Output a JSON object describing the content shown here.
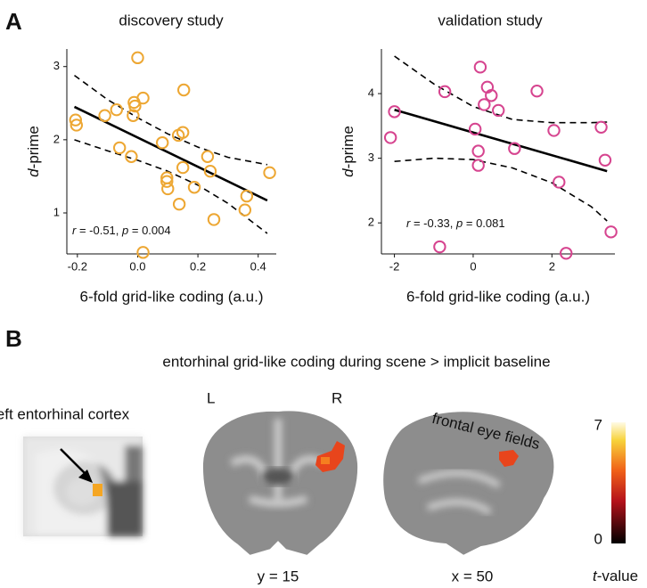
{
  "panel_a": "A",
  "panel_b": "B",
  "chart_data": [
    {
      "type": "scatter",
      "title": "discovery study",
      "x_label": "6-fold grid-like coding (a.u.)",
      "y_label": [
        "d",
        "-prime"
      ],
      "color": "#eda733",
      "xlim": [
        -0.235,
        0.46
      ],
      "ylim": [
        0.44,
        3.24
      ],
      "xticks": [
        -0.2,
        {
          "value": 0,
          "label": "0.0"
        },
        0.2,
        0.4
      ],
      "yticks": [
        1,
        2,
        3
      ],
      "x": [
        -0.206,
        -0.203,
        -0.109,
        -0.07,
        0.0,
        -0.012,
        -0.009,
        -0.015,
        0.018,
        -0.06,
        -0.021,
        0.153,
        0.082,
        0.135,
        0.15,
        0.15,
        0.097,
        0.097,
        0.1,
        0.188,
        0.138,
        0.232,
        0.241,
        0.253,
        0.356,
        0.362,
        0.438,
        0.018
      ],
      "values": [
        2.27,
        2.2,
        2.33,
        2.41,
        3.12,
        2.51,
        2.46,
        2.33,
        2.57,
        1.89,
        1.77,
        2.68,
        1.96,
        2.06,
        2.1,
        1.62,
        1.48,
        1.43,
        1.33,
        1.35,
        1.12,
        1.77,
        1.57,
        0.91,
        1.04,
        1.23,
        1.55,
        0.46
      ],
      "fit": {
        "x": [
          -0.21,
          0.43
        ],
        "y": [
          2.45,
          1.17
        ]
      },
      "ci": {
        "x": [
          -0.21,
          -0.1,
          0,
          0.1,
          0.2,
          0.3,
          0.43
        ],
        "upper": [
          2.88,
          2.55,
          2.3,
          2.08,
          1.9,
          1.76,
          1.66
        ],
        "lower": [
          2.0,
          1.85,
          1.72,
          1.57,
          1.38,
          1.13,
          0.72
        ]
      },
      "annotation": [
        "r",
        " = -0.51, ",
        "p",
        " = 0.004"
      ]
    },
    {
      "type": "scatter",
      "title": "validation study",
      "x_label": "6-fold grid-like coding (a.u.)",
      "y_label": [
        "d",
        "-prime"
      ],
      "color": "#d6448f",
      "xlim": [
        -2.33,
        3.6
      ],
      "ylim": [
        1.52,
        4.69
      ],
      "xticks": [
        -2,
        0,
        2
      ],
      "yticks": [
        2,
        3,
        4
      ],
      "x": [
        -2.1,
        -2.0,
        -0.72,
        0.18,
        0.36,
        0.46,
        0.28,
        0.64,
        1.62,
        0.05,
        0.13,
        0.13,
        1.05,
        2.05,
        3.25,
        3.35,
        2.18,
        -0.85,
        2.36,
        3.5
      ],
      "values": [
        3.32,
        3.72,
        4.03,
        4.41,
        4.1,
        3.97,
        3.83,
        3.74,
        4.04,
        3.45,
        3.11,
        2.89,
        3.15,
        3.43,
        3.48,
        2.97,
        2.63,
        1.63,
        1.53,
        1.86
      ],
      "fit": {
        "x": [
          -2,
          3.4
        ],
        "y": [
          3.75,
          2.8
        ]
      },
      "ci": {
        "x": [
          -2,
          -1,
          0,
          1,
          2,
          3,
          3.4
        ],
        "upper": [
          4.58,
          4.15,
          3.8,
          3.6,
          3.55,
          3.55,
          3.56
        ],
        "lower": [
          2.95,
          3.0,
          2.98,
          2.85,
          2.62,
          2.25,
          2.03
        ]
      },
      "annotation": [
        "r",
        " = -0.33, ",
        "p",
        " = 0.081"
      ]
    }
  ],
  "b_title": "entorhinal grid-like coding during scene > implicit baseline",
  "inset_label": "left entorhinal cortex",
  "left": "L",
  "right": "R",
  "fef": "frontal eye fields",
  "coronal": "y = 15",
  "sagittal": "x = 50",
  "colorbar": {
    "ticks": [
      0,
      7
    ],
    "label": [
      "t",
      "-value"
    ]
  }
}
